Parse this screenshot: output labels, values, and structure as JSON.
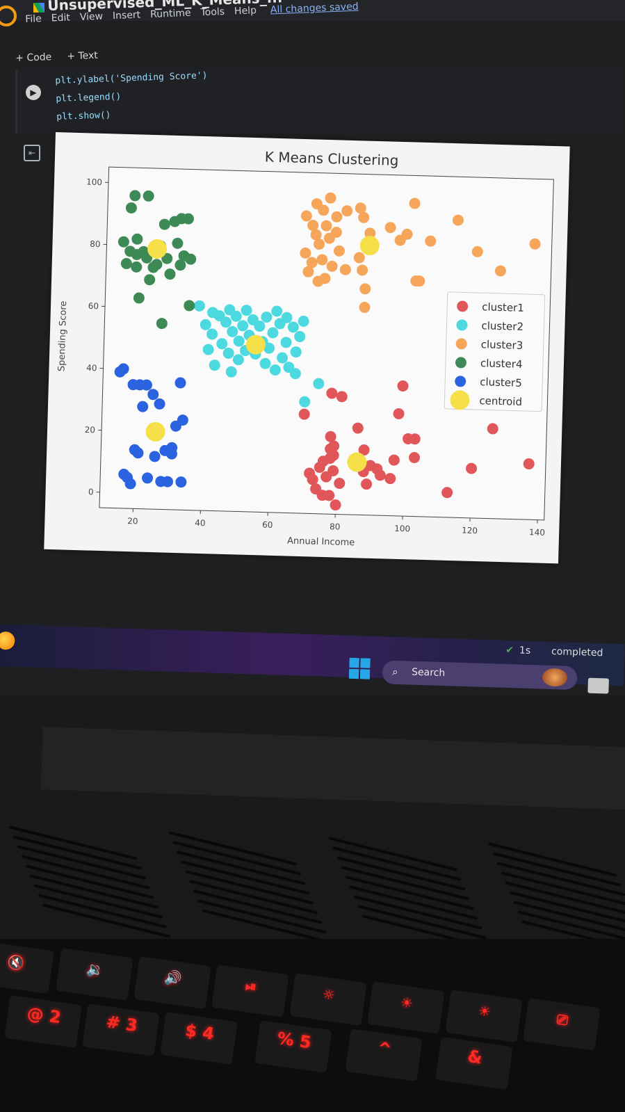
{
  "notebook": {
    "title": "Unsupervised_ML_K_Means_...",
    "menu": [
      "File",
      "Edit",
      "View",
      "Insert",
      "Runtime",
      "Tools",
      "Help"
    ],
    "save_status": "All changes saved"
  },
  "toolbar": {
    "code_label": "+ Code",
    "text_label": "+ Text"
  },
  "cell": {
    "lines": [
      "plt.ylabel('Spending Score')",
      "plt.legend()",
      "plt.show()"
    ]
  },
  "chart_data": {
    "type": "scatter",
    "title": "K Means Clustering",
    "xlabel": "Annual Income",
    "ylabel": "Spending Score",
    "xlim": [
      10,
      142
    ],
    "ylim": [
      -5,
      105
    ],
    "xticks": [
      20,
      40,
      60,
      80,
      100,
      120,
      140
    ],
    "yticks": [
      0,
      20,
      40,
      60,
      80,
      100
    ],
    "grid": false,
    "legend_position": "center-right",
    "series": [
      {
        "name": "cluster1",
        "color": "#e15759",
        "points": [
          [
            70,
            27
          ],
          [
            72,
            8
          ],
          [
            73,
            6
          ],
          [
            74,
            3
          ],
          [
            75,
            10
          ],
          [
            76,
            12
          ],
          [
            76,
            1
          ],
          [
            77,
            7
          ],
          [
            78,
            13
          ],
          [
            78,
            16
          ],
          [
            78,
            20
          ],
          [
            79,
            14
          ],
          [
            79,
            17
          ],
          [
            79,
            9
          ],
          [
            78,
            1
          ],
          [
            80,
            -2
          ],
          [
            81,
            5
          ],
          [
            78,
            34
          ],
          [
            81,
            33
          ],
          [
            86,
            23
          ],
          [
            88,
            16
          ],
          [
            88,
            9
          ],
          [
            89,
            5
          ],
          [
            90,
            11
          ],
          [
            92,
            10
          ],
          [
            93,
            8
          ],
          [
            96,
            7
          ],
          [
            97,
            13
          ],
          [
            98,
            28
          ],
          [
            99,
            37
          ],
          [
            101,
            20
          ],
          [
            103,
            14
          ],
          [
            103,
            20
          ],
          [
            113,
            3
          ],
          [
            120,
            11
          ],
          [
            126,
            24
          ],
          [
            137,
            13
          ]
        ]
      },
      {
        "name": "cluster2",
        "color": "#4dd9e0",
        "points": [
          [
            38,
            61
          ],
          [
            40,
            55
          ],
          [
            41,
            47
          ],
          [
            42,
            52
          ],
          [
            42,
            59
          ],
          [
            43,
            42
          ],
          [
            44,
            58
          ],
          [
            45,
            49
          ],
          [
            46,
            56
          ],
          [
            47,
            46
          ],
          [
            47,
            60
          ],
          [
            48,
            53
          ],
          [
            48,
            40
          ],
          [
            49,
            58
          ],
          [
            50,
            50
          ],
          [
            50,
            44
          ],
          [
            51,
            55
          ],
          [
            52,
            47
          ],
          [
            52,
            60
          ],
          [
            53,
            52
          ],
          [
            54,
            57
          ],
          [
            55,
            46
          ],
          [
            56,
            55
          ],
          [
            57,
            50
          ],
          [
            58,
            43
          ],
          [
            58,
            58
          ],
          [
            59,
            48
          ],
          [
            60,
            53
          ],
          [
            61,
            41
          ],
          [
            61,
            60
          ],
          [
            62,
            56
          ],
          [
            63,
            45
          ],
          [
            64,
            50
          ],
          [
            64,
            58
          ],
          [
            65,
            42
          ],
          [
            66,
            55
          ],
          [
            67,
            47
          ],
          [
            67,
            40
          ],
          [
            68,
            52
          ],
          [
            69,
            57
          ],
          [
            70,
            31
          ],
          [
            74,
            37
          ]
        ]
      },
      {
        "name": "cluster3",
        "color": "#f5a65b",
        "points": [
          [
            69,
            91
          ],
          [
            69,
            79
          ],
          [
            70,
            73
          ],
          [
            71,
            88
          ],
          [
            71,
            76
          ],
          [
            72,
            95
          ],
          [
            72,
            85
          ],
          [
            73,
            70
          ],
          [
            73,
            82
          ],
          [
            74,
            93
          ],
          [
            74,
            77
          ],
          [
            75,
            88
          ],
          [
            75,
            71
          ],
          [
            76,
            97
          ],
          [
            76,
            84
          ],
          [
            77,
            75
          ],
          [
            78,
            91
          ],
          [
            78,
            86
          ],
          [
            79,
            80
          ],
          [
            81,
            93
          ],
          [
            81,
            74
          ],
          [
            85,
            94
          ],
          [
            85,
            78
          ],
          [
            86,
            91
          ],
          [
            86,
            74
          ],
          [
            87,
            68
          ],
          [
            87,
            62
          ],
          [
            88,
            86
          ],
          [
            94,
            88
          ],
          [
            97,
            84
          ],
          [
            99,
            86
          ],
          [
            101,
            96
          ],
          [
            102,
            71
          ],
          [
            103,
            71
          ],
          [
            106,
            84
          ],
          [
            114,
            91
          ],
          [
            120,
            81
          ],
          [
            127,
            75
          ],
          [
            137,
            84
          ]
        ]
      },
      {
        "name": "cluster4",
        "color": "#3e8a57",
        "points": [
          [
            15,
            81
          ],
          [
            16,
            74
          ],
          [
            17,
            92
          ],
          [
            17,
            78
          ],
          [
            18,
            96
          ],
          [
            19,
            73
          ],
          [
            19,
            77
          ],
          [
            19,
            82
          ],
          [
            20,
            63
          ],
          [
            21,
            78
          ],
          [
            22,
            76
          ],
          [
            22,
            96
          ],
          [
            23,
            69
          ],
          [
            24,
            73
          ],
          [
            25,
            74
          ],
          [
            26,
            80
          ],
          [
            27,
            55
          ],
          [
            27,
            87
          ],
          [
            28,
            76
          ],
          [
            29,
            71
          ],
          [
            30,
            88
          ],
          [
            31,
            81
          ],
          [
            32,
            89
          ],
          [
            32,
            74
          ],
          [
            33,
            77
          ],
          [
            34,
            89
          ],
          [
            35,
            76
          ],
          [
            35,
            61
          ]
        ]
      },
      {
        "name": "cluster5",
        "color": "#2a62e0",
        "points": [
          [
            15,
            39
          ],
          [
            16,
            40
          ],
          [
            17,
            6
          ],
          [
            18,
            5
          ],
          [
            19,
            3
          ],
          [
            19,
            35
          ],
          [
            20,
            14
          ],
          [
            21,
            13
          ],
          [
            21,
            35
          ],
          [
            22,
            28
          ],
          [
            23,
            35
          ],
          [
            24,
            5
          ],
          [
            25,
            32
          ],
          [
            26,
            12
          ],
          [
            27,
            29
          ],
          [
            28,
            4
          ],
          [
            29,
            14
          ],
          [
            30,
            4
          ],
          [
            31,
            15
          ],
          [
            31,
            13
          ],
          [
            32,
            22
          ],
          [
            33,
            36
          ],
          [
            34,
            24
          ],
          [
            34,
            4
          ]
        ]
      },
      {
        "name": "centroid",
        "color": "#f5e04a",
        "size": "large",
        "points": [
          [
            26,
            20
          ],
          [
            55,
            49
          ],
          [
            88,
            82
          ],
          [
            86,
            12
          ],
          [
            25,
            79
          ]
        ]
      }
    ]
  }
}
